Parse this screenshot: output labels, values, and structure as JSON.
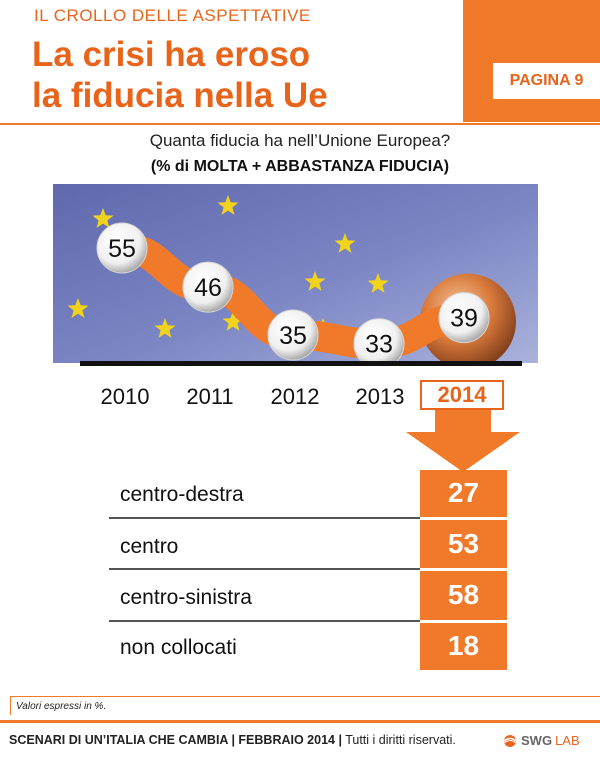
{
  "header": {
    "kicker": "IL CROLLO DELLE ASPETTATIVE",
    "title_line1": "La crisi ha eroso",
    "title_line2": "la fiducia nella Ue",
    "page_label": "PAGINA 9"
  },
  "question": {
    "text": "Quanta fiducia ha nell’Unione Europea?",
    "subtext": "(% di MOLTA + ABBASTANZA FIDUCIA)"
  },
  "chart_data": [
    {
      "type": "line",
      "categories": [
        "2010",
        "2011",
        "2012",
        "2013",
        "2014"
      ],
      "values": [
        55,
        46,
        35,
        33,
        39
      ],
      "highlight_category": "2014",
      "colors": {
        "line": "#f07a2a",
        "highlight": "#e8641b",
        "background": "#6f78b8"
      }
    },
    {
      "type": "bar",
      "categories": [
        "centro-destra",
        "centro",
        "centro-sinistra",
        "non collocati"
      ],
      "values": [
        27,
        53,
        58,
        18
      ],
      "colors": {
        "cell": "#f07a2a",
        "text": "#ffffff"
      }
    }
  ],
  "footer": {
    "note": "Valori espressi in %.",
    "text_bold": "SCENARI DI UN’ITALIA CHE CAMBIA | FEBBRAIO 2014 |",
    "text_regular": " Tutti i diritti riservati.",
    "logo_main": "SWG",
    "logo_lab": "LAB"
  }
}
